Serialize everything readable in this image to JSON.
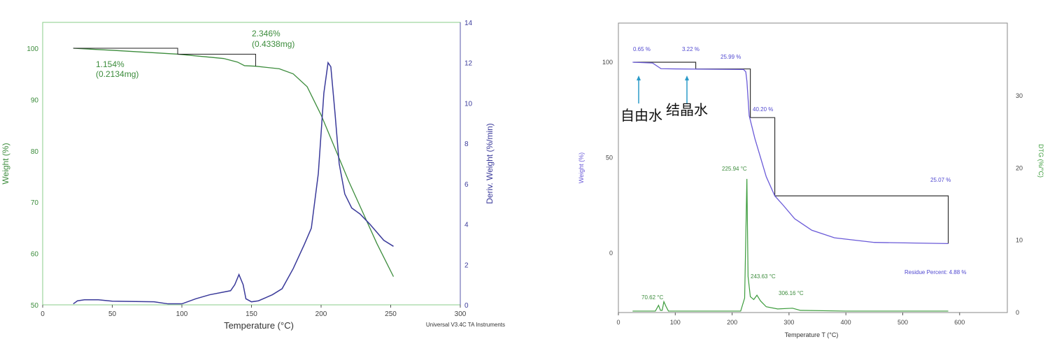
{
  "chart_data": [
    {
      "type": "line",
      "xlabel": "Temperature (°C)",
      "ylabel": "Weight (%)",
      "y2label": "Deriv. Weight (%/min)",
      "xlim": [
        0,
        300
      ],
      "ylim": [
        50,
        105
      ],
      "y2lim": [
        0,
        14
      ],
      "xticks": [
        0,
        50,
        100,
        150,
        200,
        250,
        300
      ],
      "yticks": [
        50,
        60,
        70,
        80,
        90,
        100
      ],
      "y2ticks": [
        0,
        2,
        4,
        6,
        8,
        10,
        12,
        14
      ],
      "footer": "Universal V3.4C TA Instruments",
      "colors": {
        "weight": "#3c8c3c",
        "deriv": "#3a3a9a"
      },
      "annotations": [
        {
          "text": "1.154%",
          "text2": "(0.2134mg)",
          "x": 97
        },
        {
          "text": "2.346%",
          "text2": "(0.4338mg)",
          "x": 153
        }
      ],
      "series": [
        {
          "axis": "left",
          "x": [
            22,
            50,
            97,
            130,
            140,
            145,
            153,
            170,
            180,
            190,
            200,
            210,
            220,
            230,
            240,
            252
          ],
          "y": [
            100,
            99.6,
            98.85,
            98,
            97.3,
            96.6,
            96.5,
            96,
            95,
            92.5,
            87,
            80.5,
            74,
            68,
            62,
            55.5
          ]
        },
        {
          "axis": "right",
          "x": [
            22,
            25,
            30,
            40,
            50,
            80,
            90,
            100,
            110,
            120,
            135,
            138,
            141,
            144,
            146,
            150,
            155,
            165,
            172,
            180,
            188,
            193,
            198,
            202,
            205,
            207,
            210,
            213,
            217,
            222,
            228,
            235,
            245,
            252
          ],
          "y": [
            0.05,
            0.2,
            0.25,
            0.25,
            0.18,
            0.15,
            0.05,
            0.05,
            0.3,
            0.5,
            0.7,
            1.0,
            1.5,
            1.0,
            0.3,
            0.15,
            0.2,
            0.5,
            0.8,
            1.8,
            3.0,
            3.8,
            6.5,
            10.5,
            12.0,
            11.8,
            9.5,
            7.0,
            5.5,
            4.8,
            4.5,
            4.0,
            3.2,
            2.9
          ]
        }
      ]
    },
    {
      "type": "line",
      "xlabel": "Temperature  T  (°C)",
      "ylabel": "Weight (%)",
      "y2label": "DTG (%/°C)",
      "xlim": [
        0,
        680
      ],
      "ylim": [
        -31,
        120
      ],
      "y2lim": [
        0,
        40
      ],
      "xticks": [
        0,
        100,
        200,
        300,
        400,
        500,
        600
      ],
      "yticks": [
        0,
        50,
        100
      ],
      "y2ticks": [
        0,
        10,
        20,
        30
      ],
      "colors": {
        "weight": "#6a5ad8",
        "deriv": "#3c9c3c",
        "step": "#333333",
        "arrow": "#2a9ac8"
      },
      "step_labels": [
        "0.65 %",
        "3.22 %",
        "25.99 %",
        "40.20 %",
        "25.07 %"
      ],
      "peak_labels": [
        "70.62 °C",
        "225.94 °C",
        "243.63 °C",
        "306.16 °C"
      ],
      "residue": "Residue Percent: 4.88 %",
      "notes": [
        "自由水",
        "结晶水"
      ],
      "series": [
        {
          "axis": "left",
          "x": [
            25,
            60,
            75,
            100,
            220,
            224,
            226,
            230,
            240,
            260,
            275,
            290,
            310,
            340,
            380,
            450,
            580
          ],
          "y": [
            100,
            99.6,
            96.6,
            96.5,
            96.2,
            95,
            90,
            72,
            60,
            40,
            30,
            25,
            18,
            12,
            8,
            5.6,
            5
          ]
        },
        {
          "axis": "right",
          "x": [
            25,
            65,
            70.62,
            74,
            77,
            80,
            84,
            88,
            215,
            222,
            225.94,
            228,
            232,
            238,
            243.63,
            250,
            260,
            280,
            306.16,
            320,
            400,
            580
          ],
          "y": [
            0.2,
            0.2,
            1.0,
            0.3,
            0.3,
            1.5,
            0.8,
            0.2,
            0.2,
            2,
            18.5,
            5,
            2.2,
            1.8,
            2.4,
            1.6,
            0.8,
            0.5,
            0.6,
            0.3,
            0.2,
            0.2
          ]
        }
      ]
    }
  ]
}
